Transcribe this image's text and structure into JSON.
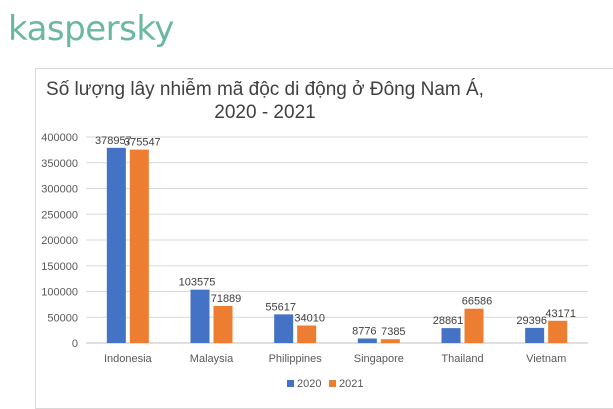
{
  "brand": {
    "logo_text": "kaspersky",
    "logo_color": "#6ab7a2"
  },
  "chart_data": {
    "type": "bar",
    "title_line1": "Số lượng lây nhiễm mã độc di động ở Đông Nam Á,",
    "title_line2": "2020 - 2021",
    "categories": [
      "Indonesia",
      "Malaysia",
      "Philippines",
      "Singapore",
      "Thailand",
      "Vietnam"
    ],
    "series": [
      {
        "name": "2020",
        "values": [
          378957,
          103575,
          55617,
          8776,
          28861,
          29396
        ],
        "color": "#4472c4"
      },
      {
        "name": "2021",
        "values": [
          375547,
          71889,
          34010,
          7385,
          66586,
          43171
        ],
        "color": "#ed7d31"
      }
    ],
    "ylim": [
      0,
      400000
    ],
    "yticks": [
      0,
      50000,
      100000,
      150000,
      200000,
      250000,
      300000,
      350000,
      400000
    ],
    "grid": true,
    "legend_position": "bottom"
  }
}
